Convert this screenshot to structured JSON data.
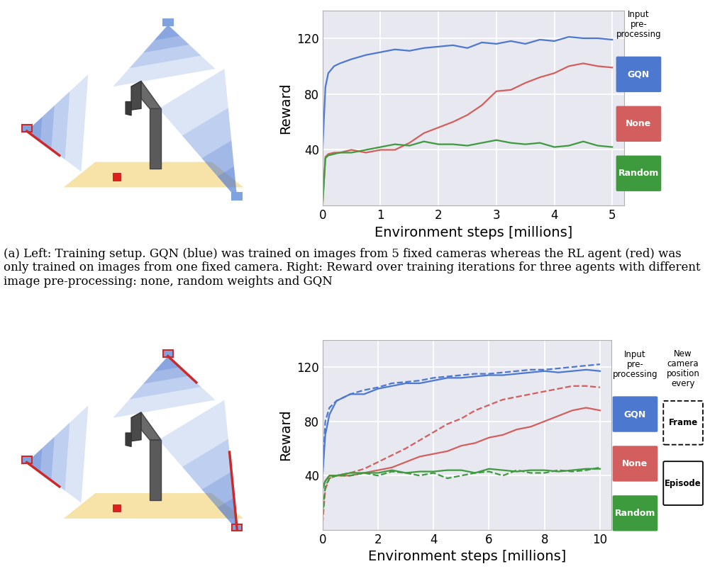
{
  "chart_data": [
    {
      "type": "line",
      "xlabel": "Environment steps [millions]",
      "ylabel": "Reward",
      "caption": "(a) Left: Training setup. GQN (blue) was trained on images from 5 fixed cameras whereas the RL agent (red) was only trained on images from one fixed camera. Right: Reward over training iterations for three agents with different image pre-processing: none, random weights and GQN",
      "legend_title": "Input\npre-\nprocessing",
      "xlim": [
        0,
        5.2
      ],
      "xticks": [
        0,
        1,
        2,
        3,
        4,
        5
      ],
      "ylim": [
        0,
        140
      ],
      "yticks": [
        40,
        80,
        120
      ],
      "grid": true,
      "x": [
        0,
        0.05,
        0.1,
        0.2,
        0.3,
        0.5,
        0.75,
        1.0,
        1.25,
        1.5,
        1.75,
        2.0,
        2.25,
        2.5,
        2.75,
        3.0,
        3.25,
        3.5,
        3.75,
        4.0,
        4.25,
        4.5,
        4.75,
        5.0
      ],
      "series": [
        {
          "name": "GQN",
          "color": "#4c78d0",
          "line_style": "solid",
          "values": [
            40,
            85,
            95,
            100,
            102,
            105,
            108,
            110,
            112,
            111,
            113,
            114,
            115,
            113,
            117,
            116,
            118,
            116,
            119,
            118,
            121,
            120,
            120,
            119
          ]
        },
        {
          "name": "None",
          "color": "#d25f5d",
          "line_style": "solid",
          "values": [
            0,
            35,
            37,
            38,
            38,
            40,
            38,
            40,
            40,
            45,
            52,
            56,
            60,
            65,
            72,
            82,
            83,
            88,
            92,
            95,
            100,
            102,
            100,
            99
          ]
        },
        {
          "name": "Random",
          "color": "#3d9a3d",
          "line_style": "solid",
          "values": [
            0,
            34,
            36,
            37,
            38,
            38,
            40,
            42,
            44,
            43,
            46,
            44,
            44,
            43,
            45,
            47,
            45,
            44,
            45,
            42,
            43,
            46,
            43,
            42
          ]
        }
      ]
    },
    {
      "type": "line",
      "xlabel": "Environment steps [millions]",
      "ylabel": "Reward",
      "legend_title": "Input\npre-\nprocessing",
      "style_legend": {
        "title": "New\ncamera\nposition\nevery",
        "entries": [
          {
            "label": "Frame",
            "line_style": "dashed"
          },
          {
            "label": "Episode",
            "line_style": "solid"
          }
        ]
      },
      "xlim": [
        0,
        10.4
      ],
      "xticks": [
        0,
        2,
        4,
        6,
        8,
        10
      ],
      "ylim": [
        0,
        140
      ],
      "yticks": [
        40,
        80,
        120
      ],
      "grid": true,
      "x": [
        0,
        0.1,
        0.25,
        0.5,
        1,
        1.5,
        2,
        2.5,
        3,
        3.5,
        4,
        4.5,
        5,
        5.5,
        6,
        6.5,
        7,
        7.5,
        8,
        8.5,
        9,
        9.5,
        10
      ],
      "series": [
        {
          "name": "GQN",
          "color": "#4c78d0",
          "line_style": "dashed",
          "values": [
            40,
            80,
            90,
            95,
            100,
            103,
            105,
            108,
            109,
            110,
            112,
            113,
            114,
            115,
            115,
            116,
            117,
            118,
            118,
            119,
            120,
            121,
            122
          ]
        },
        {
          "name": "GQN",
          "color": "#4c78d0",
          "line_style": "solid",
          "values": [
            40,
            70,
            85,
            95,
            100,
            100,
            104,
            106,
            108,
            108,
            110,
            112,
            112,
            113,
            114,
            114,
            115,
            116,
            117,
            116,
            117,
            118,
            117
          ]
        },
        {
          "name": "None",
          "color": "#d25f5d",
          "line_style": "dashed",
          "values": [
            5,
            30,
            38,
            40,
            42,
            45,
            50,
            55,
            60,
            66,
            72,
            78,
            82,
            88,
            92,
            96,
            98,
            100,
            102,
            104,
            106,
            106,
            105
          ]
        },
        {
          "name": "None",
          "color": "#d25f5d",
          "line_style": "solid",
          "values": [
            30,
            36,
            40,
            40,
            40,
            42,
            44,
            46,
            50,
            54,
            56,
            58,
            62,
            64,
            68,
            70,
            74,
            76,
            80,
            84,
            88,
            90,
            88
          ]
        },
        {
          "name": "Random",
          "color": "#3d9a3d",
          "line_style": "dashed",
          "values": [
            10,
            32,
            38,
            40,
            40,
            42,
            40,
            43,
            42,
            40,
            42,
            38,
            40,
            42,
            43,
            40,
            44,
            42,
            42,
            44,
            43,
            44,
            46
          ]
        },
        {
          "name": "Random",
          "color": "#3d9a3d",
          "line_style": "solid",
          "values": [
            30,
            36,
            40,
            40,
            42,
            42,
            42,
            44,
            42,
            43,
            43,
            44,
            44,
            42,
            45,
            44,
            43,
            44,
            44,
            43,
            44,
            45,
            45
          ]
        }
      ]
    }
  ]
}
